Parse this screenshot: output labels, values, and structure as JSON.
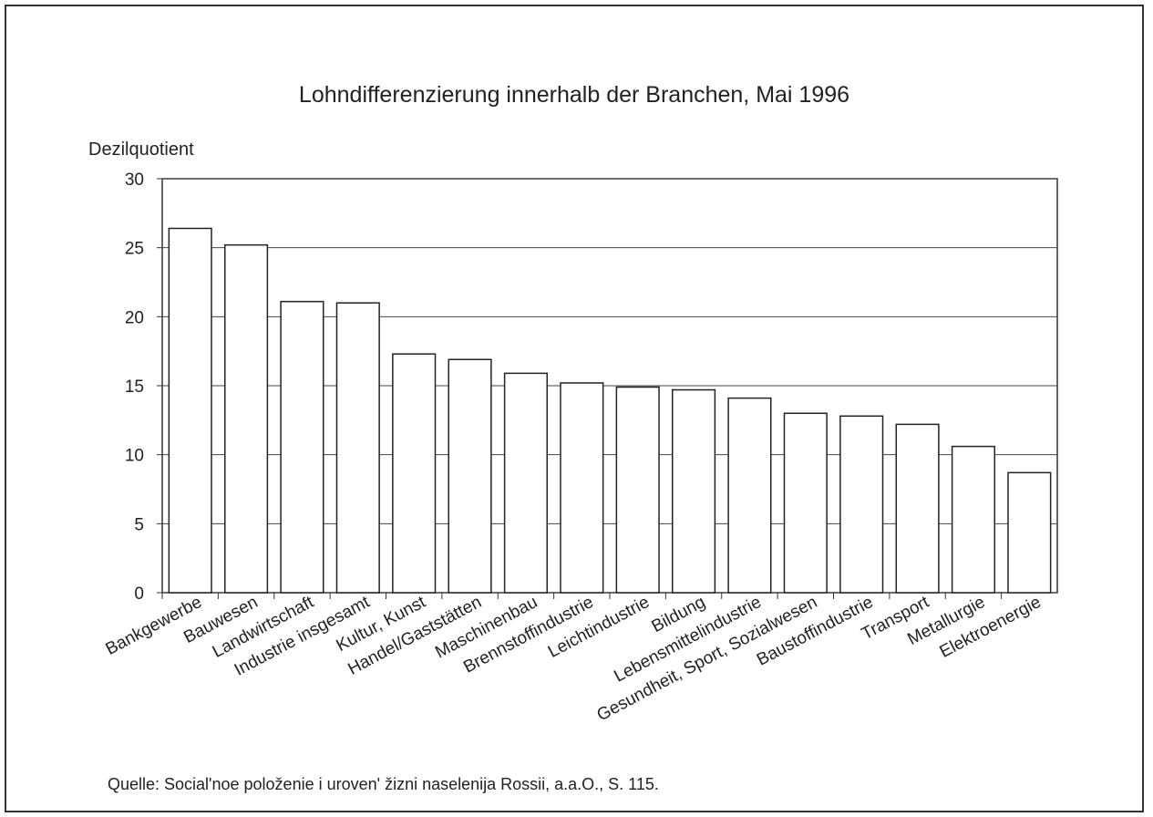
{
  "chart_data": {
    "type": "bar",
    "title": "Lohndifferenzierung innerhalb der Branchen, Mai 1996",
    "y_label": "Dezilquotient",
    "source": "Quelle: Social'noe položenie i uroven' žizni naselenija Rossii, a.a.O., S. 115.",
    "categories": [
      "Bankgewerbe",
      "Bauwesen",
      "Landwirtschaft",
      "Industrie insgesamt",
      "Kultur, Kunst",
      "Handel/Gaststätten",
      "Maschinenbau",
      "Brennstoffindustrie",
      "Leichtindustrie",
      "Bildung",
      "Lebensmittelindustrie",
      "Gesundheit, Sport, Sozialwesen",
      "Baustoffindustrie",
      "Transport",
      "Metallurgie",
      "Elektroenergie"
    ],
    "values": [
      26.4,
      25.2,
      21.1,
      21.0,
      17.3,
      16.9,
      15.9,
      15.2,
      14.9,
      14.7,
      14.1,
      13.0,
      12.8,
      12.2,
      10.6,
      8.7
    ],
    "color": "#ffffff",
    "ylim": [
      0,
      30
    ],
    "yticks": [
      0,
      5,
      10,
      15,
      20,
      25,
      30
    ],
    "grid": true
  }
}
